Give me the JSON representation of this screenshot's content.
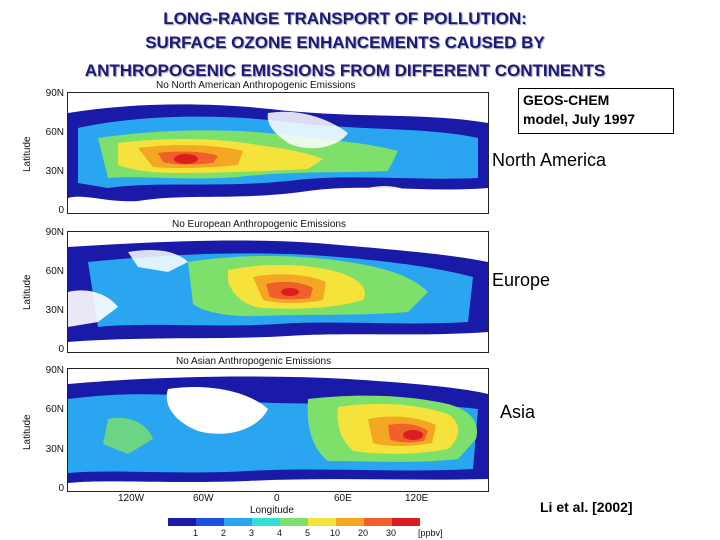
{
  "title": {
    "line1": "LONG-RANGE TRANSPORT OF POLLUTION:",
    "line2": "SURFACE OZONE ENHANCEMENTS CAUSED BY",
    "line3": "ANTHROPOGENIC EMISSIONS FROM DIFFERENT CONTINENTS"
  },
  "model_box": {
    "line1": "GEOS-CHEM",
    "line2": "model, July 1997"
  },
  "panels": [
    {
      "map_title": "No North American Anthropogenic Emissions",
      "side_label": "North America"
    },
    {
      "map_title": "No European Anthropogenic Emissions",
      "side_label": "Europe"
    },
    {
      "map_title": "No Asian Anthropogenic Emissions",
      "side_label": "Asia"
    }
  ],
  "axes": {
    "y_label": "Latitude",
    "y_ticks": [
      "90N",
      "60N",
      "30N",
      "0"
    ],
    "x_label": "Longitude",
    "x_ticks": [
      "120W",
      "60W",
      "0",
      "60E",
      "120E"
    ]
  },
  "colorbar": {
    "labels": [
      "1",
      "2",
      "3",
      "4",
      "5",
      "10",
      "20",
      "30"
    ],
    "unit": "[ppbv]",
    "colors": [
      "#1a1aa8",
      "#1f4fe0",
      "#2aa6f0",
      "#34e0d0",
      "#7de06a",
      "#f5e23a",
      "#f5a623",
      "#f0602a",
      "#d81e1e"
    ]
  },
  "citation": "Li et al. [2002]"
}
